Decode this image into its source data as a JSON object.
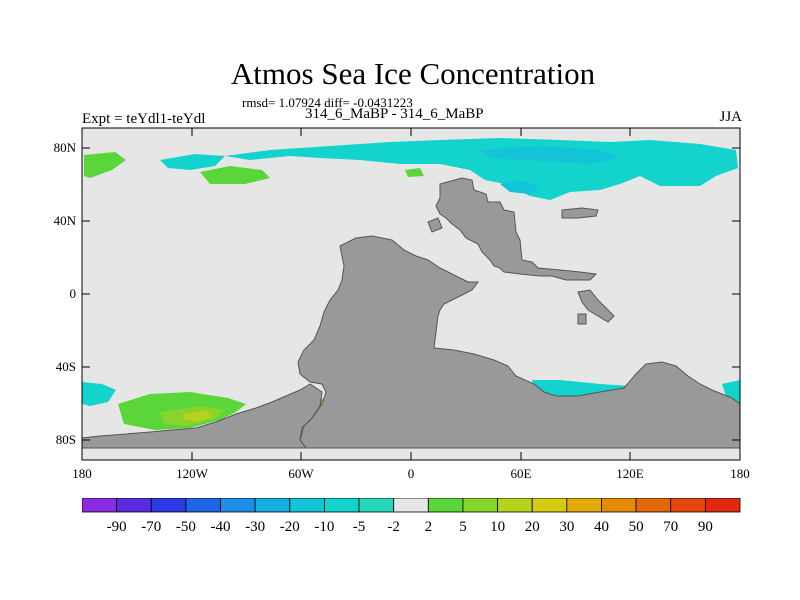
{
  "title": "Atmos Sea Ice Concentration",
  "stats": "rmsd= 1.07924 diff= -0.0431223",
  "expt": "Expt = teYdl1-teYdl",
  "subtitle": "314_6_MaBP - 314_6_MaBP",
  "season": "JJA",
  "y_axis": {
    "ticks": [
      "80N",
      "40N",
      "0",
      "40S",
      "80S"
    ]
  },
  "x_axis": {
    "ticks": [
      "180",
      "120W",
      "60W",
      "0",
      "60E",
      "120E",
      "180"
    ]
  },
  "colors": {
    "ocean_background": "#e6e6e6",
    "land": "#999999",
    "land_outline": "#555555"
  },
  "colorbar": {
    "levels": [
      "-90",
      "-70",
      "-50",
      "-40",
      "-30",
      "-20",
      "-10",
      "-5",
      "-2",
      "2",
      "5",
      "10",
      "20",
      "30",
      "40",
      "50",
      "70",
      "90"
    ],
    "colors": [
      "#8a2be2",
      "#5a2ce0",
      "#2e3ae6",
      "#1f66e6",
      "#1e8ee8",
      "#16aee0",
      "#14c4d6",
      "#12d4cc",
      "#27d8b8",
      "#e6e6e6",
      "#5ad63a",
      "#86d42c",
      "#b4d21e",
      "#d6ca12",
      "#e2aa0a",
      "#e48a06",
      "#e46808",
      "#e4480c",
      "#e2280e"
    ]
  }
}
